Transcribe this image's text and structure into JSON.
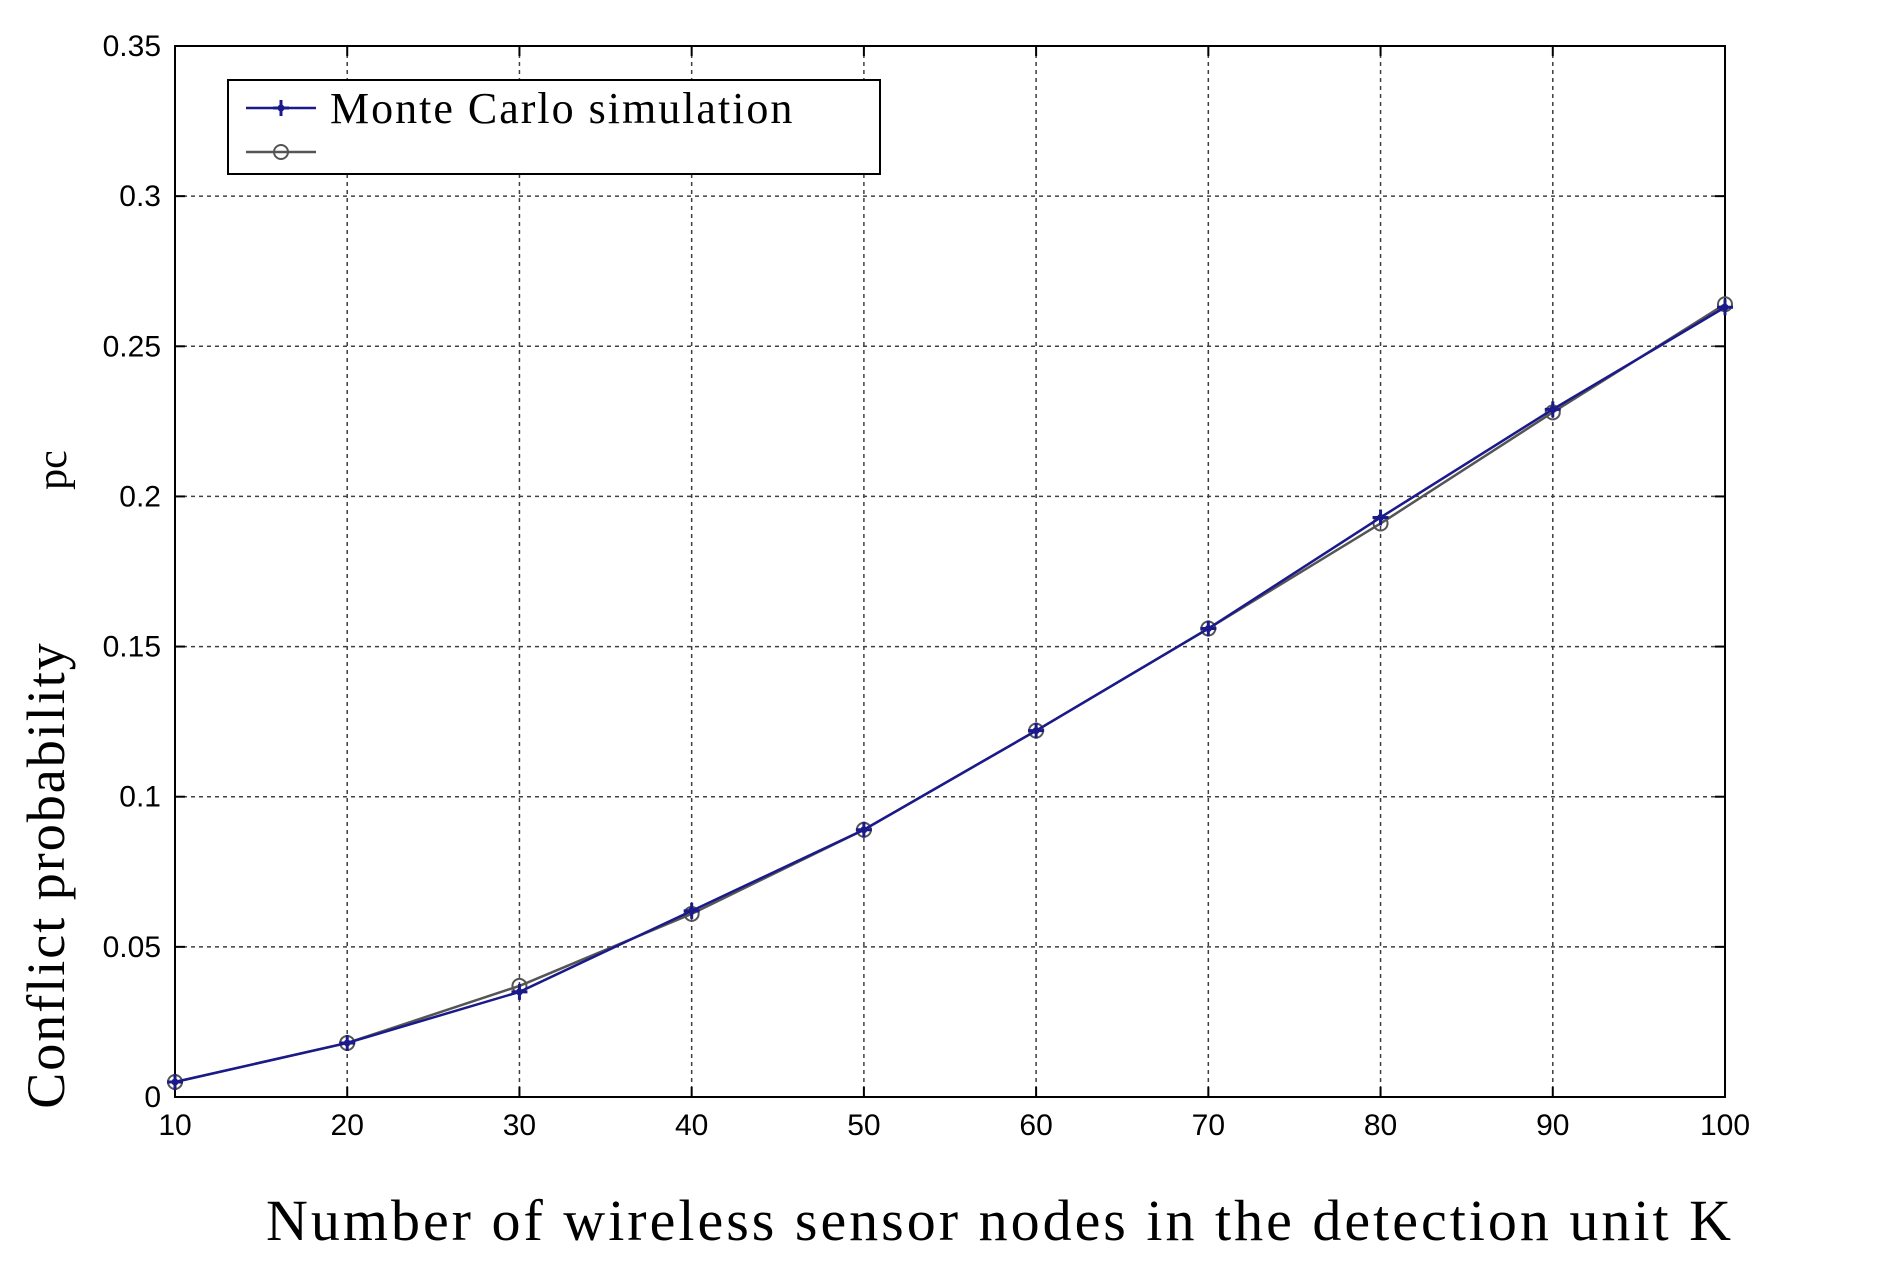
{
  "chart_data": {
    "type": "line",
    "xlabel": "Number of wireless sensor nodes in the detection unit K",
    "ylabel": "Conflict probability pc",
    "ylabel_main": "Conflict probability",
    "ylabel_symbol": "pc",
    "xlim": [
      10,
      100
    ],
    "ylim": [
      0,
      0.35
    ],
    "xticks": [
      10,
      20,
      30,
      40,
      50,
      60,
      70,
      80,
      90,
      100
    ],
    "yticks": [
      0,
      0.05,
      0.1,
      0.15,
      0.2,
      0.25,
      0.3,
      0.35
    ],
    "xtick_labels": [
      "10",
      "20",
      "30",
      "40",
      "50",
      "60",
      "70",
      "80",
      "90",
      "100"
    ],
    "ytick_labels": [
      "0",
      "0.05",
      "0.1",
      "0.15",
      "0.2",
      "0.25",
      "0.3",
      "0.35"
    ],
    "grid": true,
    "legend_position": "top-left",
    "x": [
      10,
      20,
      30,
      40,
      50,
      60,
      70,
      80,
      90,
      100
    ],
    "series": [
      {
        "name": "Monte Carlo simulation",
        "values": [
          0.005,
          0.018,
          0.035,
          0.062,
          0.089,
          0.122,
          0.156,
          0.193,
          0.229,
          0.263
        ],
        "color": "#1a1a8c",
        "marker": "plus"
      },
      {
        "name": "",
        "values": [
          0.005,
          0.018,
          0.037,
          0.061,
          0.089,
          0.122,
          0.156,
          0.191,
          0.228,
          0.264
        ],
        "color": "#555555",
        "marker": "circle"
      }
    ]
  }
}
